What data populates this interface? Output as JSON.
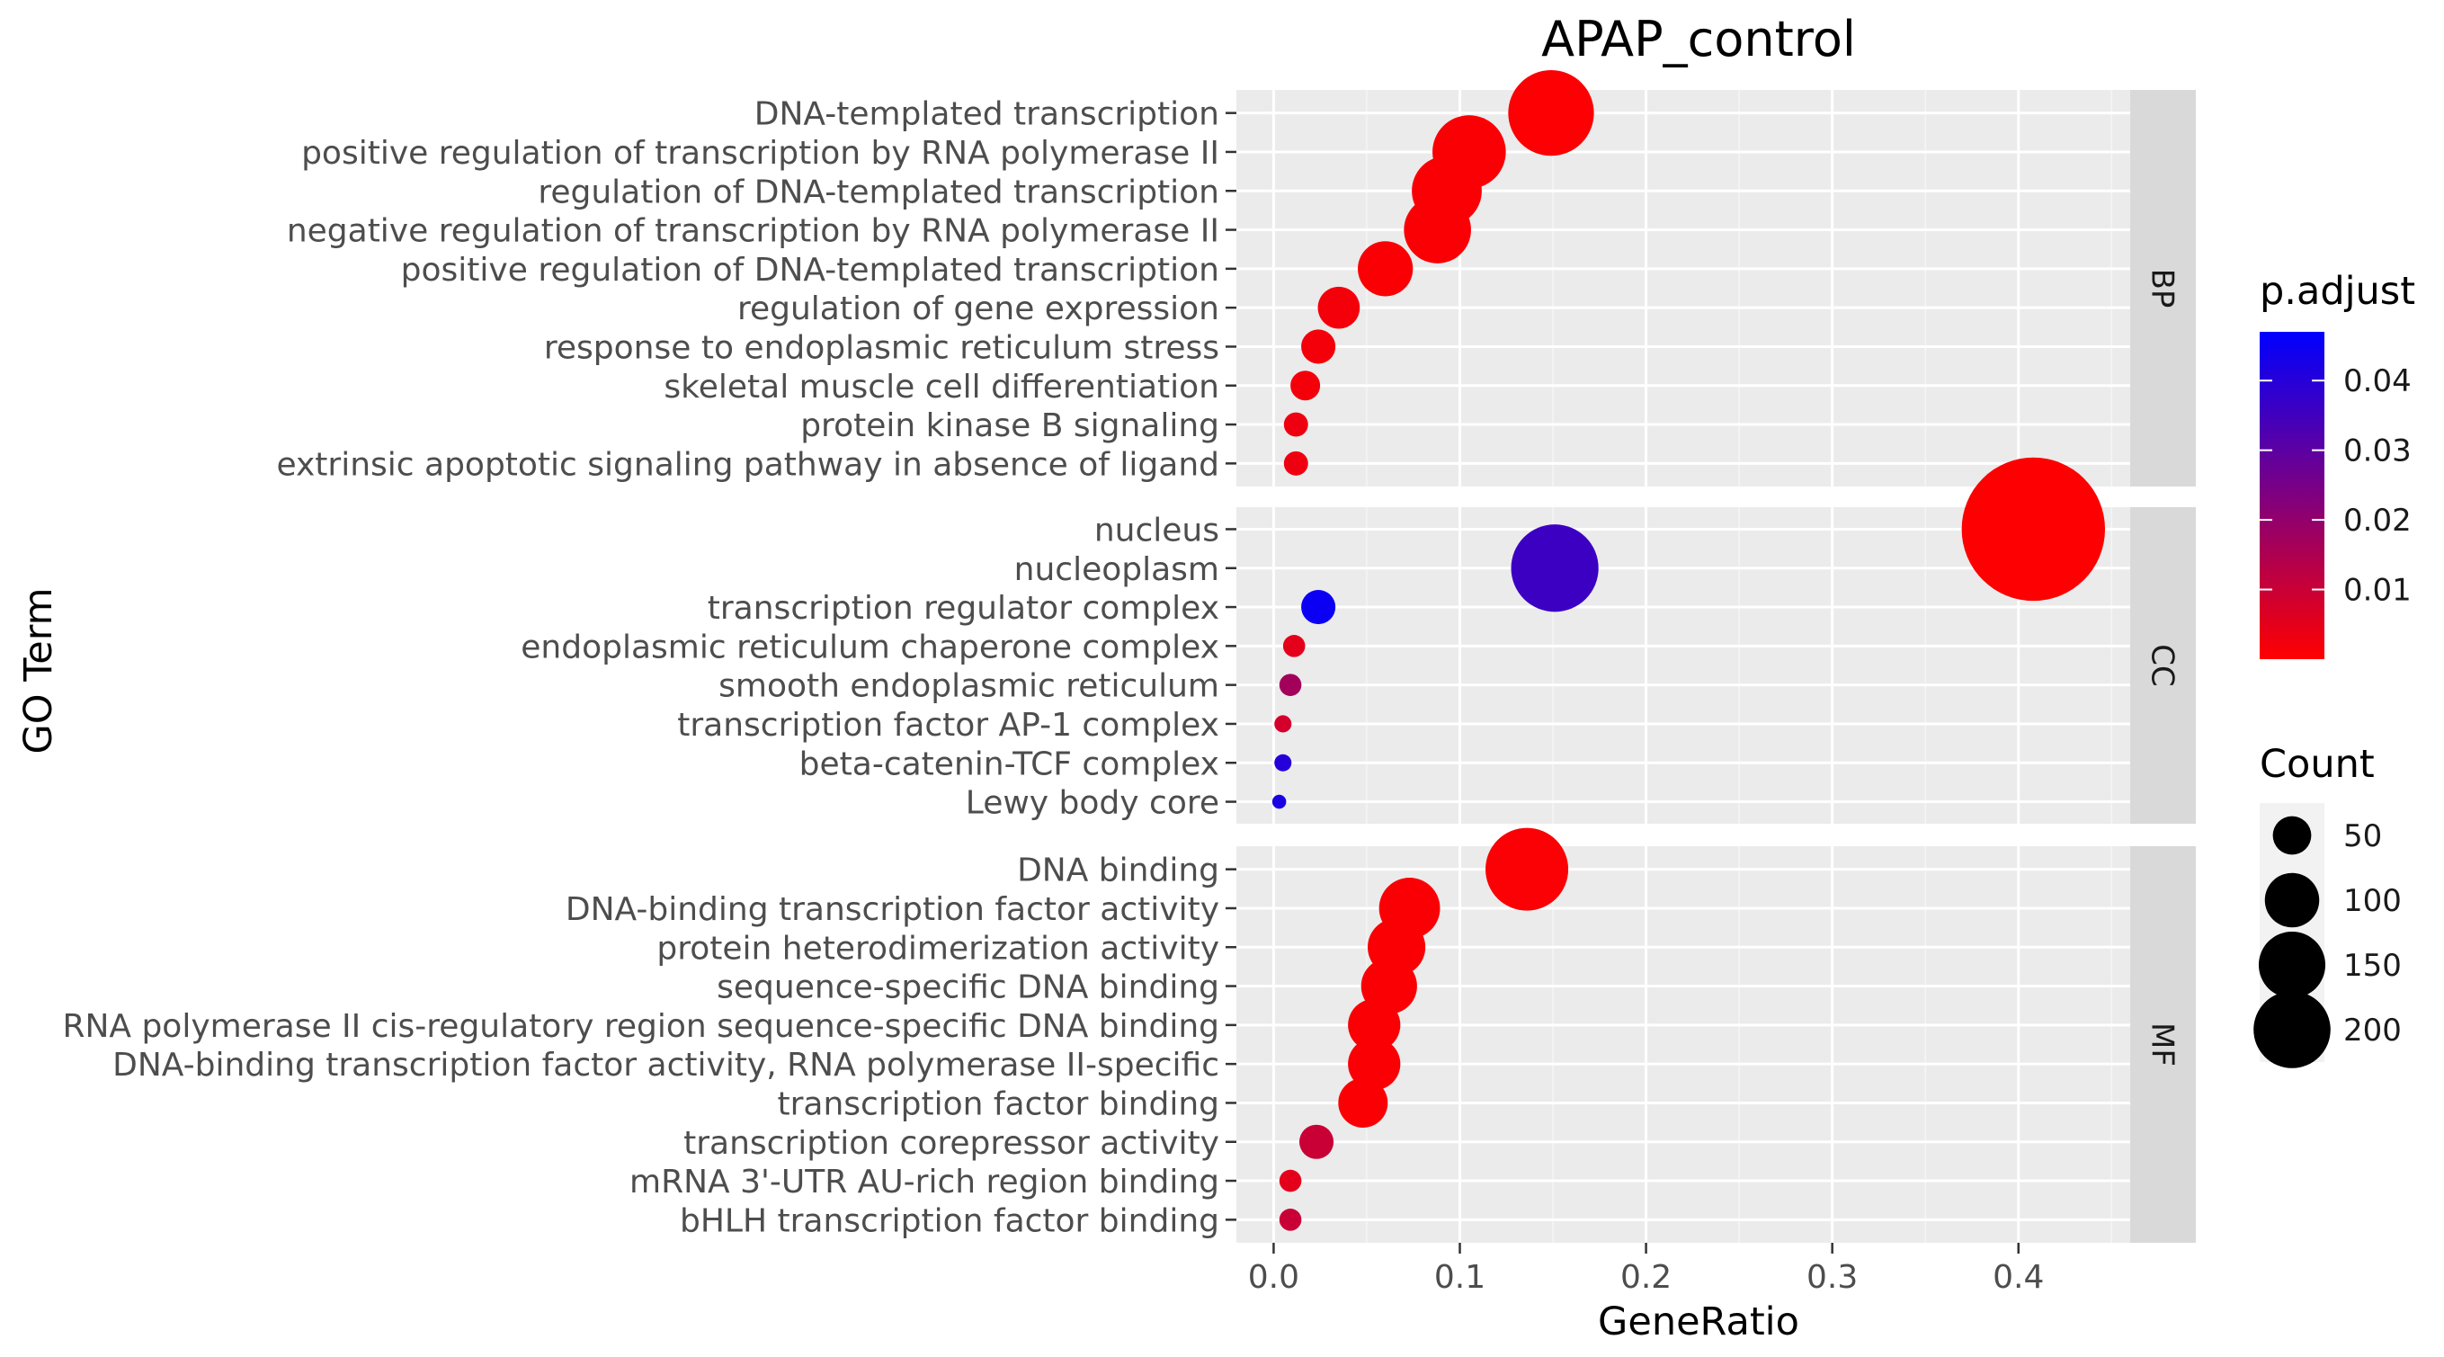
{
  "chart_data": {
    "type": "scatter",
    "title": "APAP_control",
    "xlabel": "GeneRatio",
    "ylabel": "GO Term",
    "xlim": [
      -0.02,
      0.46
    ],
    "xticks": [
      0.0,
      0.1,
      0.2,
      0.3,
      0.4
    ],
    "xtick_labels": [
      "0.0",
      "0.1",
      "0.2",
      "0.3",
      "0.4"
    ],
    "grid": true,
    "legend_position": "right",
    "color_scale": {
      "title": "p.adjust",
      "low_color": "#ff0000",
      "high_color": "#0000ff",
      "min": 0.0,
      "max": 0.047,
      "ticks": [
        0.01,
        0.02,
        0.03,
        0.04
      ],
      "tick_labels": [
        "0.01",
        "0.02",
        "0.03",
        "0.04"
      ]
    },
    "size_scale": {
      "title": "Count",
      "values": [
        50,
        100,
        150,
        200
      ],
      "labels": [
        "50",
        "100",
        "150",
        "200"
      ]
    },
    "facets": [
      {
        "label": "BP",
        "terms": [
          {
            "term": "DNA-templated transcription",
            "gene_ratio": 0.149,
            "p_adjust": 0.0005,
            "count": 75
          },
          {
            "term": "positive regulation of transcription by RNA polymerase II",
            "gene_ratio": 0.105,
            "p_adjust": 0.001,
            "count": 55
          },
          {
            "term": "regulation of DNA-templated transcription",
            "gene_ratio": 0.093,
            "p_adjust": 0.001,
            "count": 50
          },
          {
            "term": "negative regulation of transcription by RNA polymerase II",
            "gene_ratio": 0.088,
            "p_adjust": 0.001,
            "count": 46
          },
          {
            "term": "positive regulation of DNA-templated transcription",
            "gene_ratio": 0.06,
            "p_adjust": 0.001,
            "count": 31
          },
          {
            "term": "regulation of gene expression",
            "gene_ratio": 0.035,
            "p_adjust": 0.002,
            "count": 18
          },
          {
            "term": "response to endoplasmic reticulum stress",
            "gene_ratio": 0.024,
            "p_adjust": 0.002,
            "count": 12
          },
          {
            "term": "skeletal muscle cell differentiation",
            "gene_ratio": 0.017,
            "p_adjust": 0.002,
            "count": 9
          },
          {
            "term": "protein kinase B signaling",
            "gene_ratio": 0.012,
            "p_adjust": 0.003,
            "count": 6
          },
          {
            "term": "extrinsic apoptotic signaling pathway in absence of ligand",
            "gene_ratio": 0.012,
            "p_adjust": 0.003,
            "count": 6
          }
        ]
      },
      {
        "label": "CC",
        "terms": [
          {
            "term": "nucleus",
            "gene_ratio": 0.408,
            "p_adjust": 0.0003,
            "count": 210
          },
          {
            "term": "nucleoplasm",
            "gene_ratio": 0.151,
            "p_adjust": 0.036,
            "count": 78
          },
          {
            "term": "transcription regulator complex",
            "gene_ratio": 0.024,
            "p_adjust": 0.045,
            "count": 12
          },
          {
            "term": "endoplasmic reticulum chaperone complex",
            "gene_ratio": 0.011,
            "p_adjust": 0.005,
            "count": 5
          },
          {
            "term": "smooth endoplasmic reticulum",
            "gene_ratio": 0.009,
            "p_adjust": 0.017,
            "count": 5
          },
          {
            "term": "transcription factor AP-1 complex",
            "gene_ratio": 0.005,
            "p_adjust": 0.008,
            "count": 3
          },
          {
            "term": "beta-catenin-TCF complex",
            "gene_ratio": 0.005,
            "p_adjust": 0.04,
            "count": 3
          },
          {
            "term": "Lewy body core",
            "gene_ratio": 0.003,
            "p_adjust": 0.042,
            "count": 2
          }
        ]
      },
      {
        "label": "MF",
        "terms": [
          {
            "term": "DNA binding",
            "gene_ratio": 0.136,
            "p_adjust": 0.0008,
            "count": 70
          },
          {
            "term": "DNA-binding transcription factor activity",
            "gene_ratio": 0.073,
            "p_adjust": 0.001,
            "count": 38
          },
          {
            "term": "protein heterodimerization activity",
            "gene_ratio": 0.066,
            "p_adjust": 0.001,
            "count": 34
          },
          {
            "term": "sequence-specific DNA binding",
            "gene_ratio": 0.062,
            "p_adjust": 0.001,
            "count": 32
          },
          {
            "term": "RNA polymerase II cis-regulatory region sequence-specific DNA binding",
            "gene_ratio": 0.054,
            "p_adjust": 0.001,
            "count": 28
          },
          {
            "term": "DNA-binding transcription factor activity, RNA polymerase II-specific",
            "gene_ratio": 0.054,
            "p_adjust": 0.001,
            "count": 28
          },
          {
            "term": "transcription factor binding",
            "gene_ratio": 0.048,
            "p_adjust": 0.001,
            "count": 25
          },
          {
            "term": "transcription corepressor activity",
            "gene_ratio": 0.023,
            "p_adjust": 0.01,
            "count": 12
          },
          {
            "term": "mRNA 3'-UTR AU-rich region binding",
            "gene_ratio": 0.009,
            "p_adjust": 0.005,
            "count": 5
          },
          {
            "term": "bHLH transcription factor binding",
            "gene_ratio": 0.009,
            "p_adjust": 0.01,
            "count": 5
          }
        ]
      }
    ]
  }
}
